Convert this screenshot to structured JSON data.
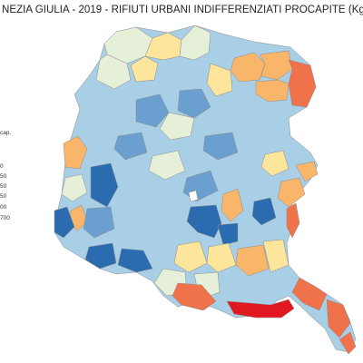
{
  "map": {
    "title": "NEZIA GIULIA - 2019 - RIFIUTI URBANI INDIFFERENZIATI PROCAPITE (Kg/",
    "legend": {
      "title": "cap.",
      "labels": [
        "0",
        "50",
        "50",
        "50",
        "00",
        "700"
      ]
    },
    "classes": {
      "c1": "#2b6cb0",
      "c2": "#6a9fd0",
      "c3": "#a9cfe6",
      "c4": "#e6f0d8",
      "c5": "#fde59c",
      "c6": "#f9b66a",
      "c7": "#f0724a",
      "c8": "#e01820"
    },
    "outline_color": "#8c8c8c"
  }
}
